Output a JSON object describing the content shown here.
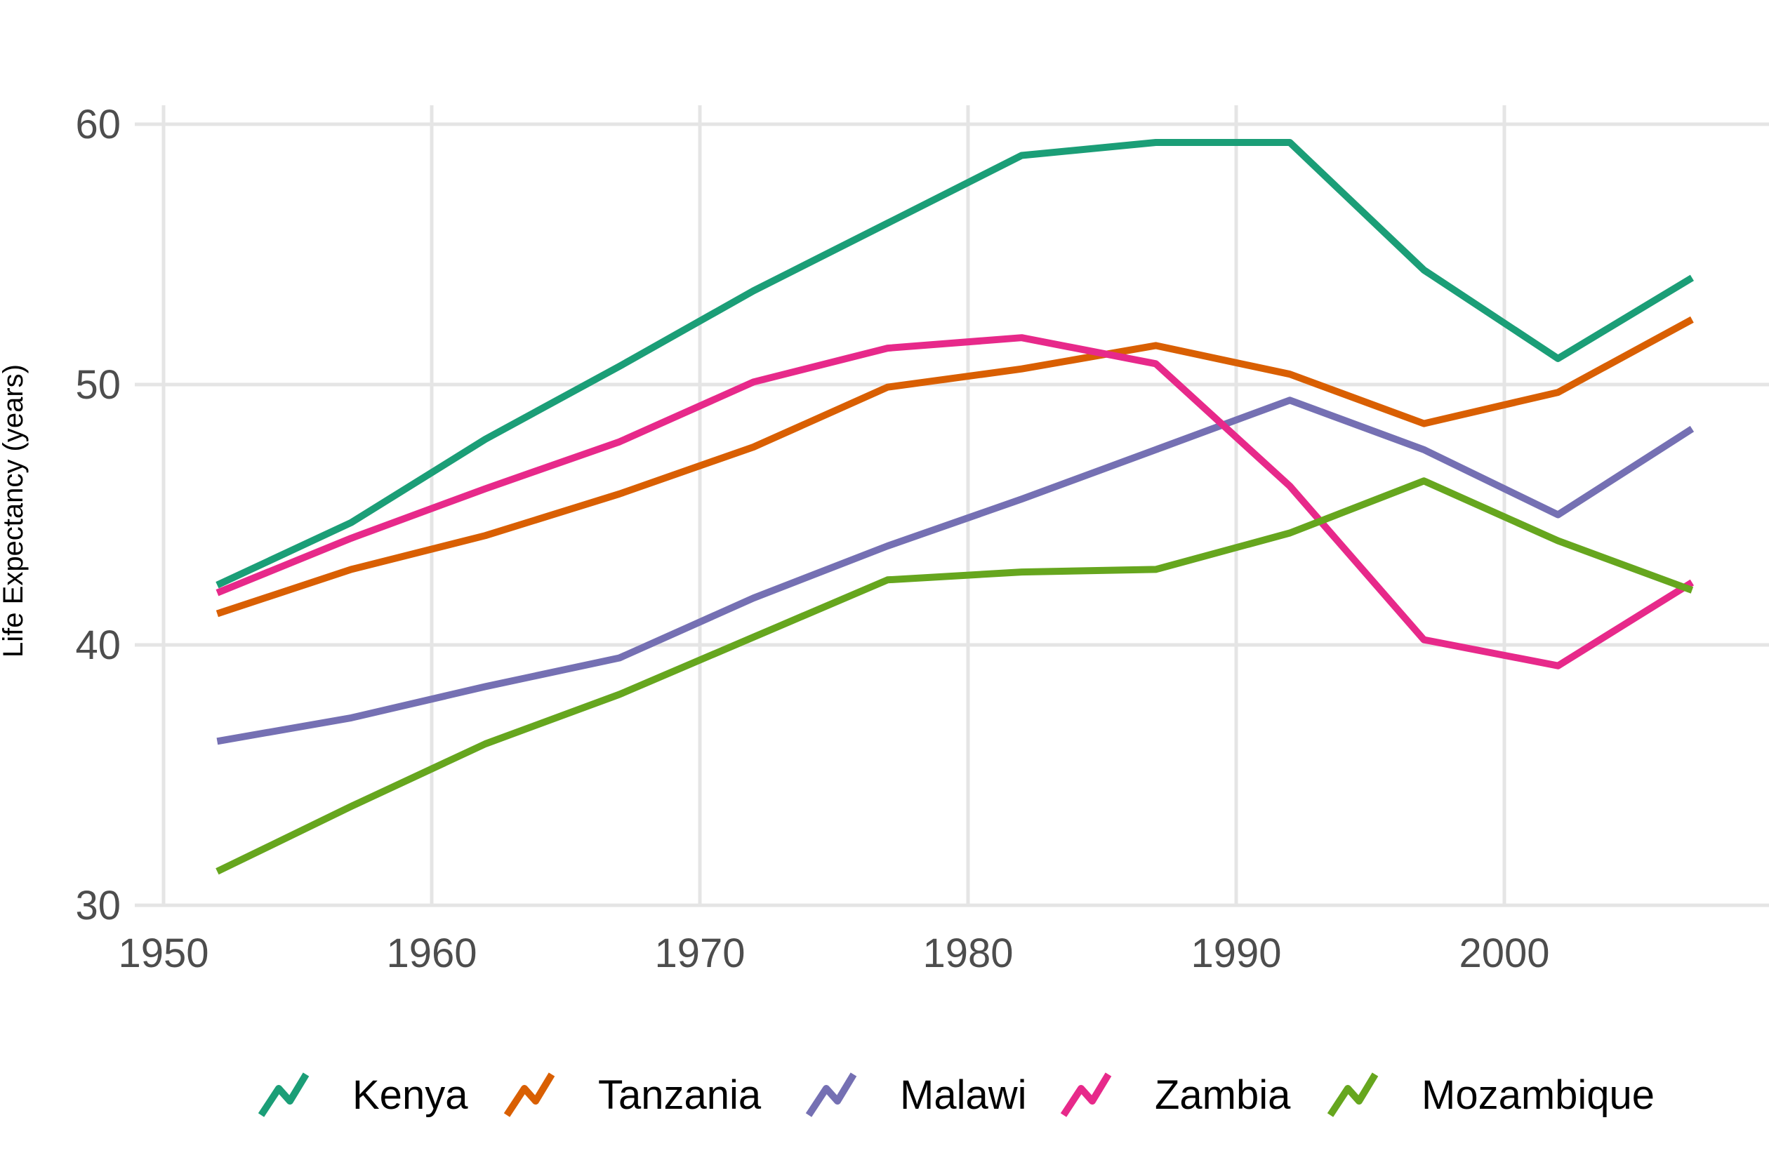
{
  "chart_data": {
    "type": "line",
    "title": "",
    "xlabel": "",
    "ylabel": "Life Expectancy (years)",
    "x": [
      1952,
      1957,
      1962,
      1967,
      1972,
      1977,
      1982,
      1987,
      1992,
      1997,
      2002,
      2007
    ],
    "xlim": [
      1950,
      2009.5
    ],
    "ylim": [
      30,
      61
    ],
    "x_ticks": [
      1950,
      1960,
      1970,
      1980,
      1990,
      2000
    ],
    "y_ticks": [
      30,
      40,
      50,
      60
    ],
    "x_tick_labels": [
      "1950",
      "1960",
      "1970",
      "1980",
      "1990",
      "2000"
    ],
    "y_tick_labels": [
      "30",
      "40",
      "50",
      "60"
    ],
    "grid": true,
    "legend_position": "bottom",
    "series": [
      {
        "name": "Kenya",
        "color": "#1b9e77",
        "values": [
          42.3,
          44.7,
          47.9,
          50.7,
          53.6,
          56.2,
          58.8,
          59.3,
          59.3,
          54.4,
          51.0,
          54.1
        ]
      },
      {
        "name": "Tanzania",
        "color": "#d95f02",
        "values": [
          41.2,
          42.9,
          44.2,
          45.8,
          47.6,
          49.9,
          50.6,
          51.5,
          50.4,
          48.5,
          49.7,
          52.5
        ]
      },
      {
        "name": "Malawi",
        "color": "#7570b3",
        "values": [
          36.3,
          37.2,
          38.4,
          39.5,
          41.8,
          43.8,
          45.6,
          47.5,
          49.4,
          47.5,
          45.0,
          48.3
        ]
      },
      {
        "name": "Zambia",
        "color": "#e7298a",
        "values": [
          42.0,
          44.1,
          46.0,
          47.8,
          50.1,
          51.4,
          51.8,
          50.8,
          46.1,
          40.2,
          39.2,
          42.4
        ]
      },
      {
        "name": "Mozambique",
        "color": "#66a61e",
        "values": [
          31.3,
          33.8,
          36.2,
          38.1,
          40.3,
          42.5,
          42.8,
          42.9,
          44.3,
          46.3,
          44.0,
          42.1
        ]
      }
    ]
  }
}
